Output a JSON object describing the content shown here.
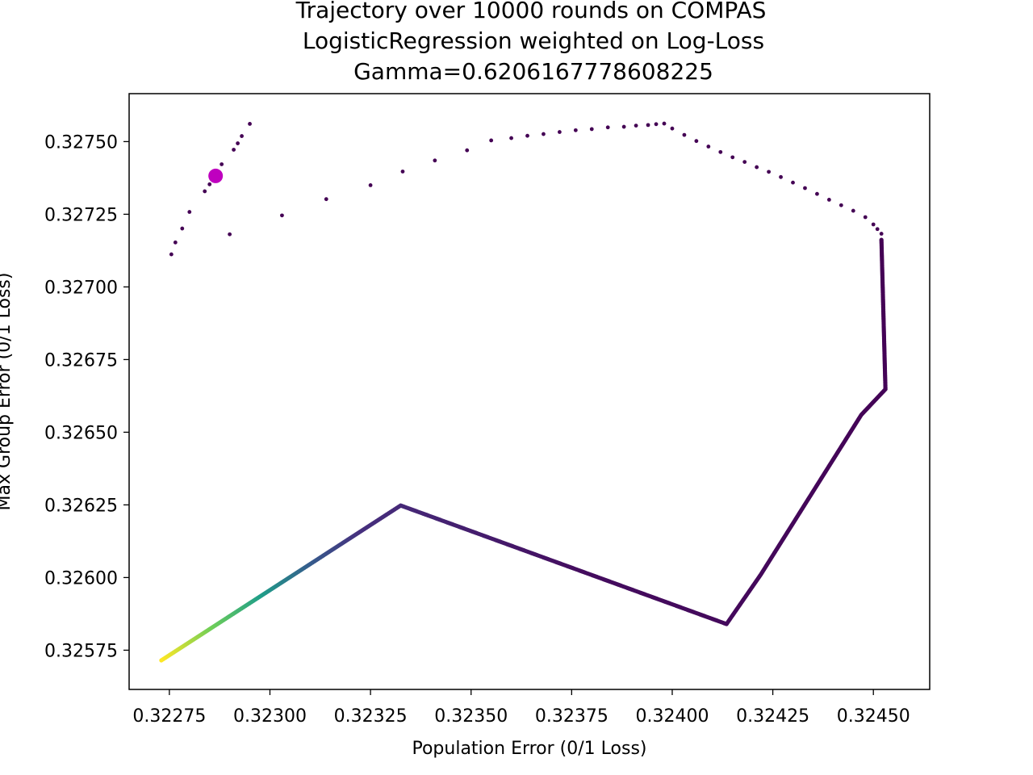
{
  "chart_data": {
    "type": "scatter",
    "title_lines": [
      "Trajectory over 10000 rounds on COMPAS",
      "LogisticRegression weighted on Log-Loss",
      "Gamma=0.6206167778608225"
    ],
    "xlabel": "Population Error (0/1 Loss)",
    "ylabel": "Max Group Error (0/1 Loss)",
    "xlim": [
      0.32265,
      0.32464
    ],
    "ylim": [
      0.325615,
      0.327665
    ],
    "xticks": [
      0.32275,
      0.323,
      0.32325,
      0.3235,
      0.32375,
      0.324,
      0.32425,
      0.3245
    ],
    "xtick_labels": [
      "0.32275",
      "0.32300",
      "0.32325",
      "0.32350",
      "0.32375",
      "0.32400",
      "0.32425",
      "0.32450"
    ],
    "yticks": [
      0.32575,
      0.326,
      0.32625,
      0.3265,
      0.32675,
      0.327,
      0.32725,
      0.3275
    ],
    "ytick_labels": [
      "0.32575",
      "0.32600",
      "0.32625",
      "0.32650",
      "0.32675",
      "0.32700",
      "0.32725",
      "0.32750"
    ],
    "grid": false,
    "colormap": "viridis",
    "series": [
      {
        "points": [
          [
            0.322755,
            0.327112
          ],
          [
            0.322765,
            0.327153
          ],
          [
            0.322782,
            0.327201
          ],
          [
            0.3228,
            0.327258
          ],
          [
            0.322838,
            0.327329
          ],
          [
            0.32285,
            0.327353
          ],
          [
            0.32288,
            0.327422
          ],
          [
            0.32291,
            0.327472
          ],
          [
            0.32292,
            0.327494
          ],
          [
            0.32293,
            0.327519
          ],
          [
            0.32295,
            0.327561
          ],
          [
            0.3229,
            0.327181
          ],
          [
            0.32303,
            0.327246
          ],
          [
            0.32314,
            0.327302
          ],
          [
            0.32325,
            0.32735
          ],
          [
            0.32333,
            0.327397
          ],
          [
            0.32341,
            0.327435
          ],
          [
            0.32349,
            0.32747
          ],
          [
            0.32355,
            0.327504
          ],
          [
            0.3236,
            0.327512
          ],
          [
            0.32364,
            0.32752
          ],
          [
            0.32368,
            0.327526
          ],
          [
            0.32372,
            0.327533
          ],
          [
            0.32376,
            0.327539
          ],
          [
            0.3238,
            0.327543
          ],
          [
            0.32384,
            0.327549
          ],
          [
            0.32388,
            0.327551
          ],
          [
            0.32391,
            0.327555
          ],
          [
            0.32394,
            0.327557
          ],
          [
            0.32396,
            0.32756
          ],
          [
            0.32398,
            0.327562
          ],
          [
            0.324,
            0.327545
          ],
          [
            0.32403,
            0.327523
          ],
          [
            0.32406,
            0.327502
          ],
          [
            0.32409,
            0.327483
          ],
          [
            0.32412,
            0.327464
          ],
          [
            0.32415,
            0.327446
          ],
          [
            0.32418,
            0.32743
          ],
          [
            0.32421,
            0.327412
          ],
          [
            0.32424,
            0.327396
          ],
          [
            0.32427,
            0.327378
          ],
          [
            0.3243,
            0.327359
          ],
          [
            0.32433,
            0.32734
          ],
          [
            0.32436,
            0.32732
          ],
          [
            0.32439,
            0.3273
          ],
          [
            0.32442,
            0.327281
          ],
          [
            0.32445,
            0.327262
          ],
          [
            0.32448,
            0.32724
          ],
          [
            0.3245,
            0.327215
          ],
          [
            0.32451,
            0.327199
          ],
          [
            0.32452,
            0.327183
          ]
        ]
      },
      {
        "points": [
          [
            0.32452,
            0.327162
          ],
          [
            0.32453,
            0.326648
          ],
          [
            0.32447,
            0.32656
          ],
          [
            0.32422,
            0.32601
          ],
          [
            0.324135,
            0.32584
          ],
          [
            0.323325,
            0.326248
          ],
          [
            0.32273,
            0.325715
          ]
        ]
      }
    ],
    "highlight_point": [
      0.322865,
      0.327382
    ],
    "highlight_color": "#bf00bf",
    "colors": {
      "start": "#440154",
      "early": "#46307e",
      "mid": "#365c8d",
      "teal": "#1f9e89",
      "green": "#6ece58",
      "end": "#fde725"
    }
  }
}
